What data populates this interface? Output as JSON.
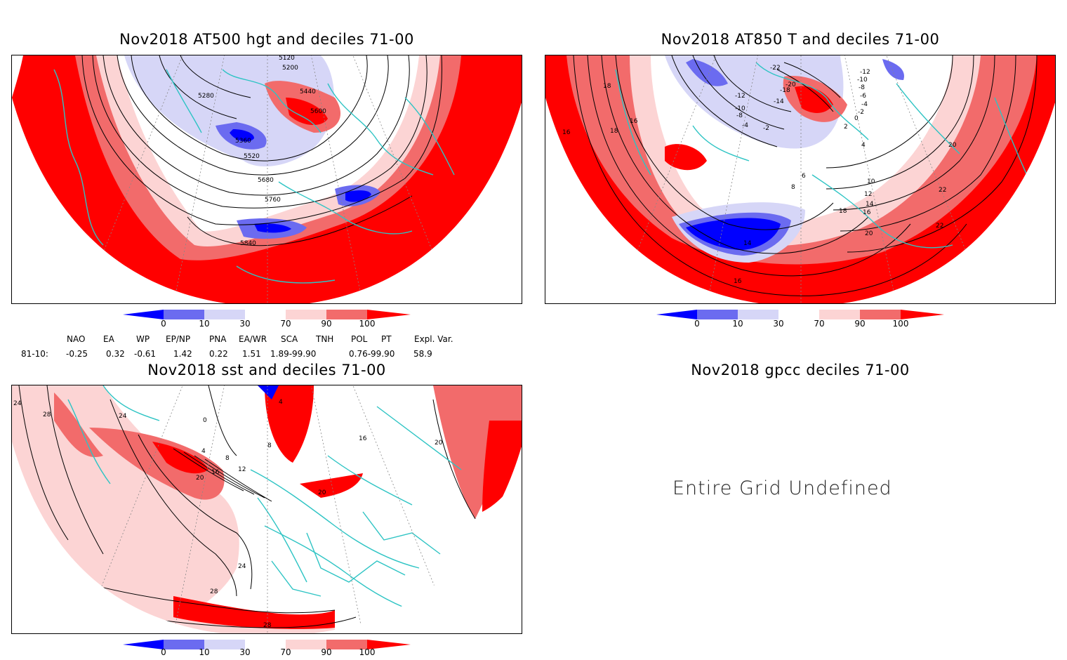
{
  "panels": {
    "hgt": {
      "title": "Nov2018 AT500 hgt and deciles 71-00",
      "contour_labels": [
        "5120",
        "5200",
        "5280",
        "5440",
        "5600",
        "5360",
        "5520",
        "5680",
        "5760",
        "5840"
      ]
    },
    "t850": {
      "title": "Nov2018 AT850 T and deciles 71-00",
      "contour_labels": [
        "-22",
        "-12",
        "-10",
        "-8",
        "-6",
        "-4",
        "-2",
        "-20",
        "-18",
        "-14",
        "-12",
        "-10",
        "-8",
        "-4",
        "-2",
        "0",
        "2",
        "4",
        "6",
        "8",
        "10",
        "12",
        "14",
        "16",
        "18",
        "20",
        "22",
        "18",
        "16",
        "18",
        "16",
        "20",
        "22",
        "14",
        "16"
      ]
    },
    "sst": {
      "title": "Nov2018 sst and deciles 71-00",
      "contour_labels": [
        "24",
        "28",
        "24",
        "0",
        "4",
        "8",
        "12",
        "16",
        "20",
        "24",
        "28",
        "28",
        "4",
        "8",
        "16",
        "20",
        "20"
      ]
    },
    "gpcc": {
      "title": "Nov2018 gpcc deciles 71-00",
      "message": "Entire Grid Undefined"
    }
  },
  "colorbar": {
    "ticks": [
      "0",
      "10",
      "30",
      "70",
      "90",
      "100"
    ],
    "colors": [
      "#0000ff",
      "#6b6bf0",
      "#d6d6f7",
      "#ffffff",
      "#fcd4d4",
      "#f26b6b",
      "#ff0000"
    ]
  },
  "indices": {
    "headers": [
      "NAO",
      "EA",
      "WP",
      "EP/NP",
      "PNA",
      "EA/WR",
      "SCA",
      "TNH",
      "POL",
      "PT",
      "Expl. Var."
    ],
    "row_label": "81-10:",
    "values": [
      "-0.25",
      "0.32",
      "-0.61",
      "1.42",
      "0.22",
      "1.51",
      "1.89-99.90",
      "0.76-99.90",
      "58.9"
    ]
  }
}
